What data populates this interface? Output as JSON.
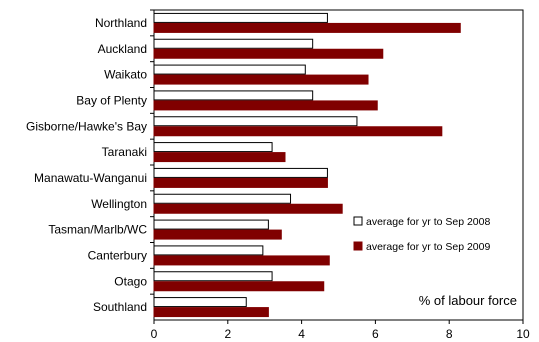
{
  "chart_data": {
    "type": "bar",
    "orientation": "horizontal",
    "categories": [
      "Northland",
      "Auckland",
      "Waikato",
      "Bay of Plenty",
      "Gisborne/Hawke's Bay",
      "Taranaki",
      "Manawatu-Wanganui",
      "Wellington",
      "Tasman/Marlb/WC",
      "Canterbury",
      "Otago",
      "Southland"
    ],
    "series": [
      {
        "name": "average for yr to Sep 2008",
        "color": "#ffffff",
        "stroke": "#000000",
        "values": [
          4.7,
          4.3,
          4.1,
          4.3,
          5.5,
          3.2,
          4.7,
          3.7,
          3.1,
          2.95,
          3.2,
          2.5
        ]
      },
      {
        "name": "average for yr to Sep 2009",
        "color": "#800000",
        "stroke": "#800000",
        "values": [
          8.3,
          6.2,
          5.8,
          6.05,
          7.8,
          3.55,
          4.7,
          5.1,
          3.45,
          4.75,
          4.6,
          3.1
        ]
      }
    ],
    "xlim": [
      0,
      10
    ],
    "xticks": [
      "0",
      "2",
      "4",
      "6",
      "8",
      "10"
    ],
    "unit_label": "% of labour force",
    "legend_position": "right",
    "grid": false
  }
}
